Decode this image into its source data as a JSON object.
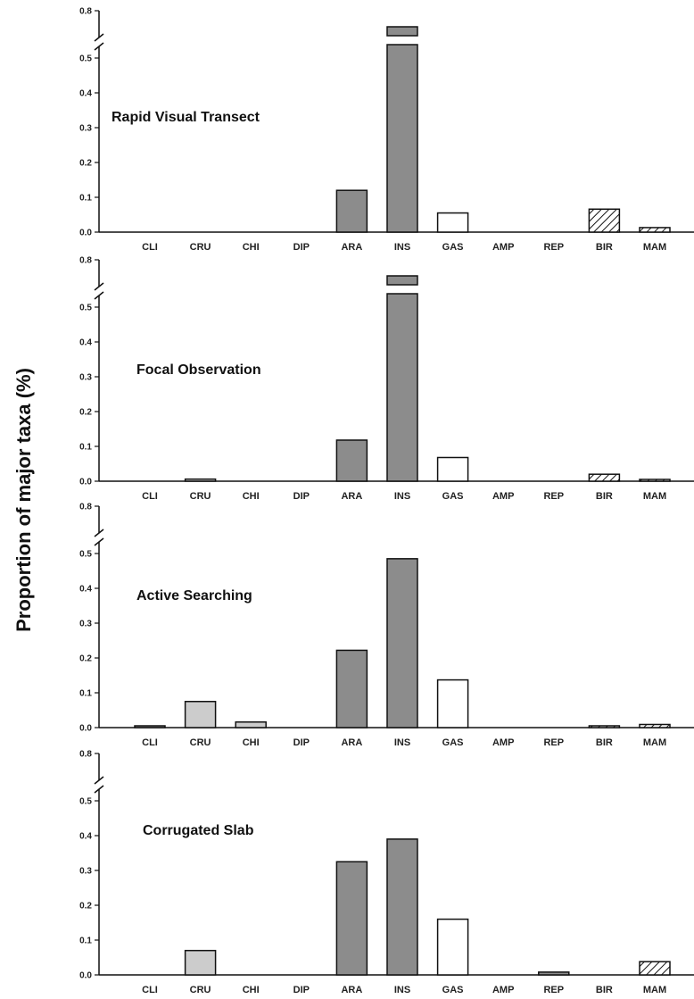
{
  "chart_data": {
    "type": "bar",
    "ylabel": "Proportion of major taxa (%)",
    "categories": [
      "CLI",
      "CRU",
      "CHI",
      "DIP",
      "ARA",
      "INS",
      "GAS",
      "AMP",
      "REP",
      "BIR",
      "MAM"
    ],
    "y_ticks": [
      "0.0",
      "0.1",
      "0.2",
      "0.3",
      "0.4",
      "0.5",
      "0.8"
    ],
    "axis_break": "between 0.5 and 0.8",
    "category_groups": {
      "CLI": "dark",
      "CRU": "light",
      "CHI": "light",
      "DIP": "dark",
      "ARA": "dark",
      "INS": "dark",
      "GAS": "white",
      "AMP": "dark",
      "REP": "dark",
      "BIR": "hatched",
      "MAM": "hatched"
    },
    "colors": {
      "dark": "#8c8c8c",
      "light": "#cccccc",
      "white": "#ffffff",
      "edge": "#111111"
    },
    "panels": [
      {
        "title": "Rapid Visual Transect",
        "values": [
          0,
          0,
          0,
          0,
          0.12,
          0.62,
          0.055,
          0,
          0,
          0.066,
          0.013
        ]
      },
      {
        "title": "Focal Observation",
        "values": [
          0,
          0.006,
          0,
          0,
          0.118,
          0.62,
          0.068,
          0,
          0,
          0.02,
          0.004
        ]
      },
      {
        "title": "Active Searching",
        "values": [
          0.003,
          0.075,
          0.016,
          0,
          0.222,
          0.485,
          0.137,
          0,
          0,
          0.005,
          0.009
        ]
      },
      {
        "title": "Corrugated Slab",
        "values": [
          0,
          0.07,
          0,
          0,
          0.325,
          0.39,
          0.16,
          0,
          0.008,
          0,
          0.038
        ]
      }
    ]
  }
}
